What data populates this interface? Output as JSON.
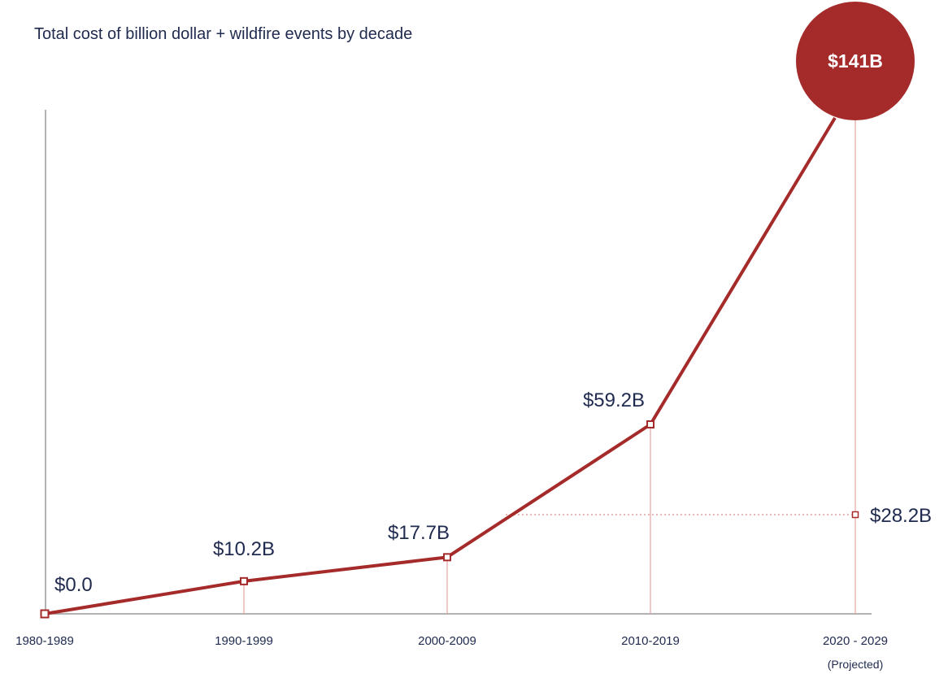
{
  "chart_data": {
    "type": "line",
    "title": "Total cost of billion dollar + wildfire events by decade",
    "xlabel": "",
    "ylabel": "",
    "categories": [
      "1980-1989",
      "1990-1999",
      "2000-2009",
      "2010-2019",
      "2020 - 2029"
    ],
    "category_note": "(Projected)",
    "values": [
      0.0,
      10.2,
      17.7,
      59.2,
      141
    ],
    "value_labels": [
      "$0.0",
      "$10.2B",
      "$17.7B",
      "$59.2B",
      "$141B"
    ],
    "secondary_point": {
      "category": "2020 - 2029",
      "value": 28.2,
      "label": "$28.2B"
    },
    "ylim": [
      0,
      160
    ],
    "grid": false,
    "legend": "none",
    "colors": {
      "line": "#a52a2a",
      "bubble": "#a52a2a",
      "text": "#1f2a4e",
      "axis": "#999999",
      "dotted": "#e0a0a0"
    }
  }
}
